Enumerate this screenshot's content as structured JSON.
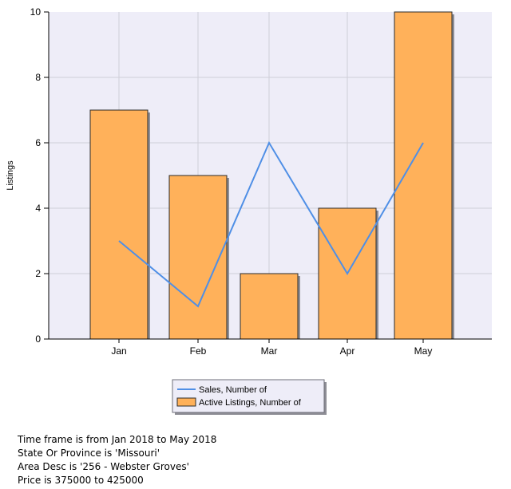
{
  "colors": {
    "plot_bg": "#EEEDF8",
    "grid": "#CFCFD8",
    "bar_fill": "#FFB15A",
    "bar_stroke": "#2B2B2B",
    "bar_shadow": "#8E8E96",
    "line": "#4F8FE6",
    "legend_bg": "#EEEDF8"
  },
  "chart_data": {
    "type": "bar",
    "categories": [
      "Jan",
      "Feb",
      "Mar",
      "Apr",
      "May"
    ],
    "series": [
      {
        "name": "Active Listings, Number of",
        "type": "bar",
        "values": [
          7,
          5,
          2,
          4,
          10
        ]
      },
      {
        "name": "Sales, Number of",
        "type": "line",
        "values": [
          3,
          1,
          6,
          2,
          6
        ]
      }
    ],
    "ylabel": "Listings",
    "ylim": [
      0,
      10
    ],
    "yticks": [
      "0",
      "2",
      "4",
      "6",
      "8",
      "10"
    ],
    "grid": true,
    "legend_position": "bottom"
  },
  "filters": [
    "Time frame is from Jan 2018 to May 2018",
    "State Or Province is 'Missouri'",
    "Area Desc is '256 - Webster Groves'",
    "Price is 375000 to 425000"
  ]
}
